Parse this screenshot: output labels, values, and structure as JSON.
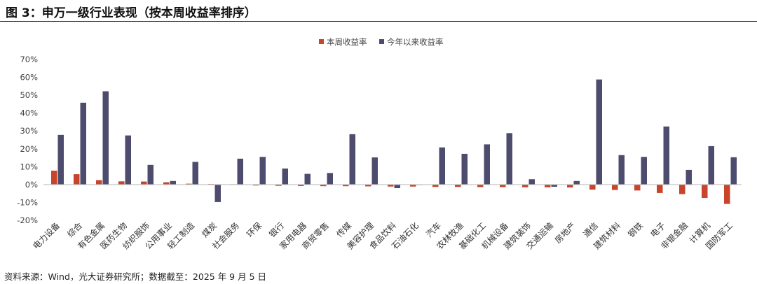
{
  "header": {
    "title": "图 3：申万一级行业表现（按本周收益率排序）"
  },
  "footer": {
    "source": "资料来源：Wind，光大证券研究所；数据截至：2025 年 9 月 5 日"
  },
  "chart_data": {
    "type": "bar",
    "title": "",
    "xlabel": "",
    "ylabel": "",
    "ylim": [
      -20,
      70
    ],
    "yticks": [
      -20,
      -10,
      0,
      10,
      20,
      30,
      40,
      50,
      60,
      70
    ],
    "ytick_labels": [
      "-20%",
      "-10%",
      "0%",
      "10%",
      "20%",
      "30%",
      "40%",
      "50%",
      "60%",
      "70%"
    ],
    "grid": false,
    "legend_position": "top-center",
    "categories": [
      "电力设备",
      "综合",
      "有色金属",
      "医药生物",
      "纺织服饰",
      "公用事业",
      "轻工制造",
      "煤炭",
      "社会服务",
      "环保",
      "银行",
      "家用电器",
      "商贸零售",
      "传媒",
      "美容护理",
      "食品饮料",
      "石油石化",
      "汽车",
      "农林牧渔",
      "基础化工",
      "机械设备",
      "建筑装饰",
      "交通运输",
      "房地产",
      "通信",
      "建筑材料",
      "钢铁",
      "电子",
      "非银金融",
      "计算机",
      "国防军工"
    ],
    "series": [
      {
        "name": "本周收益率",
        "color": "#C8442A",
        "values": [
          7.8,
          5.8,
          2.5,
          1.8,
          1.7,
          1.3,
          0.5,
          0.3,
          0.2,
          -0.5,
          -0.7,
          -0.8,
          -0.9,
          -0.9,
          -1.0,
          -1.1,
          -1.1,
          -1.3,
          -1.3,
          -1.4,
          -1.4,
          -1.5,
          -1.5,
          -1.6,
          -2.8,
          -3.0,
          -3.3,
          -4.7,
          -5.3,
          -7.5,
          -10.8
        ]
      },
      {
        "name": "今年以来收益率",
        "color": "#4E4C6E",
        "values": [
          27.8,
          45.8,
          52.2,
          27.5,
          11.0,
          2.0,
          12.7,
          -9.8,
          14.5,
          15.5,
          9.0,
          6.0,
          6.5,
          28.2,
          15.2,
          -2.0,
          -0.2,
          20.8,
          17.2,
          22.5,
          28.8,
          3.0,
          -1.2,
          2.0,
          58.8,
          16.5,
          15.5,
          32.5,
          8.2,
          21.5,
          15.3
        ]
      }
    ]
  }
}
